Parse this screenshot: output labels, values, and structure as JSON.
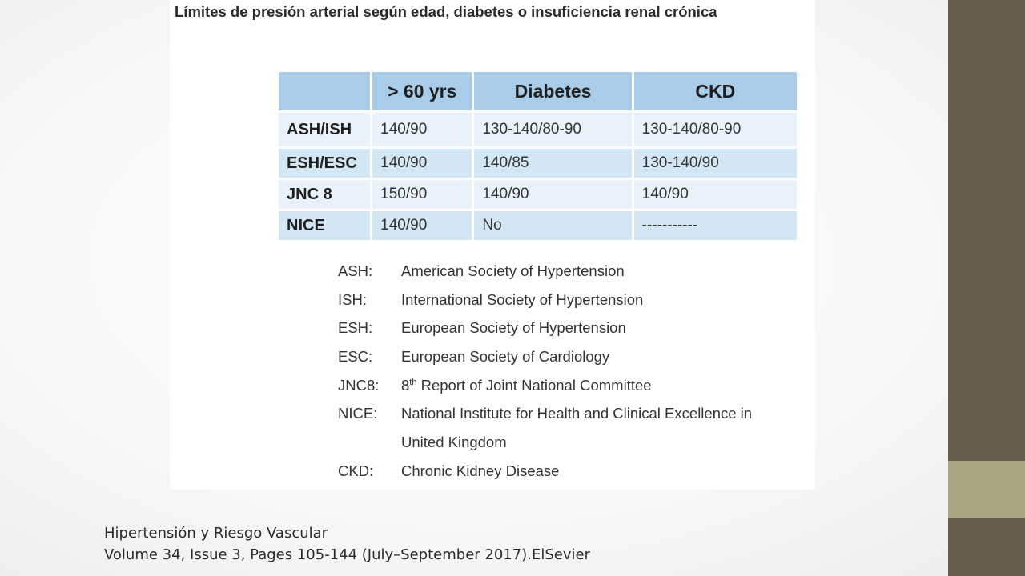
{
  "title": "Límites de presión arterial según edad, diabetes o insuficiencia renal crónica",
  "table": {
    "headers": [
      "",
      "> 60 yrs",
      "Diabetes",
      "CKD"
    ],
    "rows": [
      {
        "name": "ASH/ISH",
        "cells": [
          "140/90",
          "130-140/80-90",
          "130-140/80-90"
        ]
      },
      {
        "name": "ESH/ESC",
        "cells": [
          "140/90",
          "140/85",
          "130-140/90"
        ]
      },
      {
        "name": "JNC 8",
        "cells": [
          "150/90",
          "140/90",
          "140/90"
        ]
      },
      {
        "name": "NICE",
        "cells": [
          "140/90",
          "No",
          "-----------"
        ]
      }
    ]
  },
  "legend": [
    {
      "abbr": "ASH:",
      "desc": "American Society of Hypertension"
    },
    {
      "abbr": "ISH:",
      "desc": "International Society of Hypertension"
    },
    {
      "abbr": "ESH:",
      "desc": "European Society of Hypertension"
    },
    {
      "abbr": "ESC:",
      "desc": "European Society of Cardiology"
    },
    {
      "abbr": "JNC8:",
      "desc_pre": "8",
      "desc_sup": "th",
      "desc_post": " Report of Joint National Committee"
    },
    {
      "abbr": "NICE:",
      "desc": "National Institute for Health and Clinical Excellence in"
    },
    {
      "abbr": "",
      "desc": "United Kingdom"
    },
    {
      "abbr": "CKD:",
      "desc": "Chronic Kidney Disease"
    }
  ],
  "citation": {
    "line1": "Hipertensión y Riesgo Vascular",
    "line2": "Volume 34, Issue 3, Pages 105-144 (July–September 2017).ElSevier"
  },
  "colors": {
    "header_bg": "#a9cde8",
    "row_light": "#e9f2fa",
    "row_dark": "#d3e6f4",
    "sidebar_dark": "#675f4b",
    "sidebar_light": "#a8a57e"
  }
}
